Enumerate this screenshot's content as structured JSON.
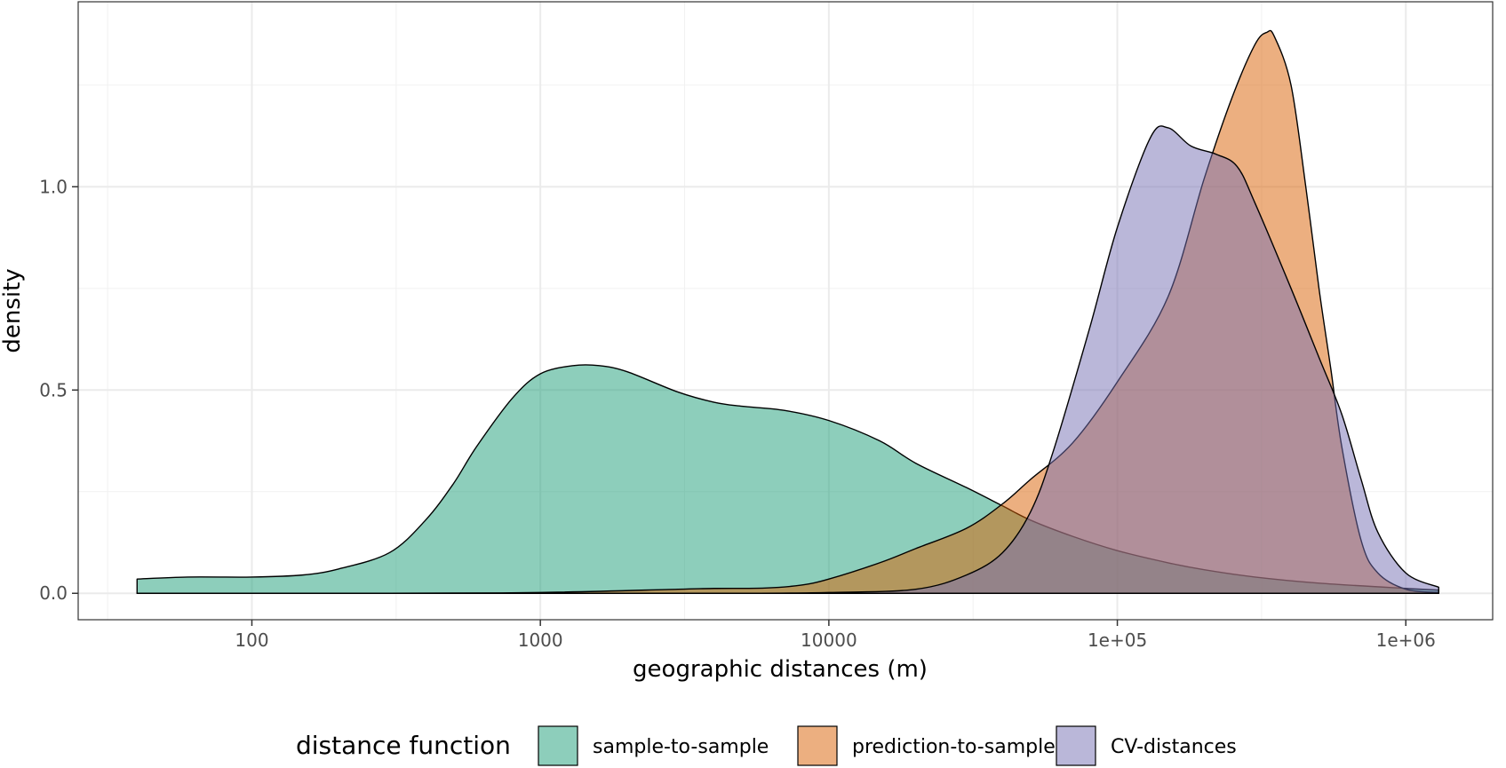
{
  "chart_data": {
    "type": "area",
    "xlabel": "geographic distances (m)",
    "ylabel": "density",
    "x_scale": "log10",
    "xlim": [
      25,
      2000000
    ],
    "ylim": [
      -0.065,
      1.455
    ],
    "x_ticks": [
      {
        "value": 100,
        "label": "100"
      },
      {
        "value": 1000,
        "label": "1000"
      },
      {
        "value": 10000,
        "label": "10000"
      },
      {
        "value": 100000,
        "label": "1e+05"
      },
      {
        "value": 1000000,
        "label": "1e+06"
      }
    ],
    "y_ticks": [
      {
        "value": 0,
        "label": "0.0"
      },
      {
        "value": 0.5,
        "label": "0.5"
      },
      {
        "value": 1,
        "label": "1.0"
      }
    ],
    "grid": true,
    "legend": {
      "title": "distance function",
      "position": "bottom"
    },
    "series": [
      {
        "name": "sample-to-sample",
        "color": "#1B9E77",
        "points": [
          [
            40,
            0.035
          ],
          [
            60,
            0.04
          ],
          [
            100,
            0.04
          ],
          [
            150,
            0.045
          ],
          [
            200,
            0.06
          ],
          [
            300,
            0.1
          ],
          [
            400,
            0.18
          ],
          [
            500,
            0.27
          ],
          [
            600,
            0.36
          ],
          [
            800,
            0.48
          ],
          [
            1000,
            0.54
          ],
          [
            1300,
            0.56
          ],
          [
            1600,
            0.56
          ],
          [
            2000,
            0.545
          ],
          [
            3000,
            0.495
          ],
          [
            4000,
            0.47
          ],
          [
            5000,
            0.46
          ],
          [
            7000,
            0.45
          ],
          [
            10000,
            0.425
          ],
          [
            15000,
            0.375
          ],
          [
            20000,
            0.32
          ],
          [
            30000,
            0.26
          ],
          [
            40000,
            0.215
          ],
          [
            50000,
            0.18
          ],
          [
            70000,
            0.14
          ],
          [
            100000,
            0.105
          ],
          [
            150000,
            0.075
          ],
          [
            200000,
            0.058
          ],
          [
            300000,
            0.04
          ],
          [
            500000,
            0.025
          ],
          [
            1000000,
            0.012
          ],
          [
            1300000,
            0.008
          ]
        ]
      },
      {
        "name": "prediction-to-sample",
        "color": "#D95F02",
        "points": [
          [
            40,
            0.0
          ],
          [
            300,
            0.0
          ],
          [
            1000,
            0.002
          ],
          [
            3000,
            0.01
          ],
          [
            4000,
            0.012
          ],
          [
            6000,
            0.013
          ],
          [
            8000,
            0.02
          ],
          [
            10000,
            0.035
          ],
          [
            15000,
            0.075
          ],
          [
            20000,
            0.11
          ],
          [
            30000,
            0.16
          ],
          [
            40000,
            0.22
          ],
          [
            50000,
            0.28
          ],
          [
            70000,
            0.37
          ],
          [
            100000,
            0.52
          ],
          [
            150000,
            0.73
          ],
          [
            200000,
            1.02
          ],
          [
            250000,
            1.22
          ],
          [
            300000,
            1.35
          ],
          [
            330000,
            1.38
          ],
          [
            350000,
            1.37
          ],
          [
            400000,
            1.25
          ],
          [
            450000,
            1.0
          ],
          [
            500000,
            0.75
          ],
          [
            550000,
            0.55
          ],
          [
            600000,
            0.36
          ],
          [
            700000,
            0.13
          ],
          [
            800000,
            0.05
          ],
          [
            1000000,
            0.01
          ],
          [
            1300000,
            0.002
          ]
        ]
      },
      {
        "name": "CV-distances",
        "color": "#7570B3",
        "points": [
          [
            40,
            0.0
          ],
          [
            1000,
            0.0
          ],
          [
            5000,
            0.0
          ],
          [
            10000,
            0.002
          ],
          [
            20000,
            0.01
          ],
          [
            30000,
            0.045
          ],
          [
            40000,
            0.1
          ],
          [
            50000,
            0.2
          ],
          [
            60000,
            0.35
          ],
          [
            80000,
            0.65
          ],
          [
            100000,
            0.9
          ],
          [
            130000,
            1.12
          ],
          [
            150000,
            1.145
          ],
          [
            180000,
            1.1
          ],
          [
            220000,
            1.08
          ],
          [
            260000,
            1.05
          ],
          [
            300000,
            0.96
          ],
          [
            400000,
            0.75
          ],
          [
            500000,
            0.58
          ],
          [
            600000,
            0.44
          ],
          [
            700000,
            0.28
          ],
          [
            800000,
            0.15
          ],
          [
            1000000,
            0.05
          ],
          [
            1300000,
            0.015
          ]
        ]
      }
    ]
  }
}
